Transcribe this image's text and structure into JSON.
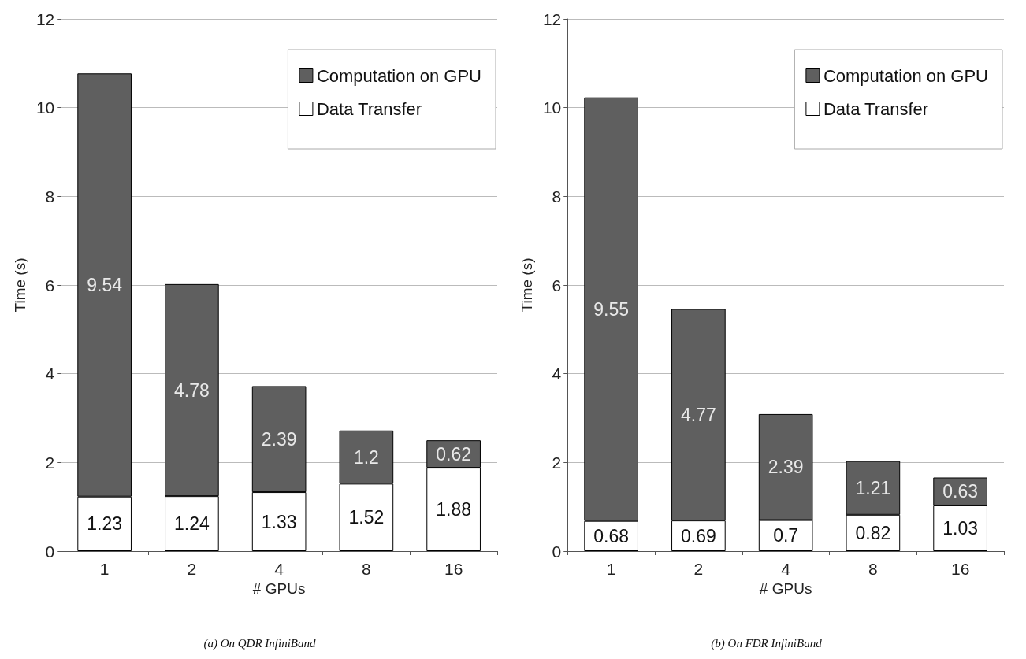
{
  "chart_data": [
    {
      "type": "bar",
      "stacked": true,
      "xlabel": "# GPUs",
      "ylabel": "Time (s)",
      "categories": [
        "1",
        "2",
        "4",
        "8",
        "16"
      ],
      "series": [
        {
          "name": "Data Transfer",
          "color": "#ffffff",
          "values": [
            1.23,
            1.24,
            1.33,
            1.52,
            1.88
          ]
        },
        {
          "name": "Computation on GPU",
          "color": "#5f5f5f",
          "values": [
            9.54,
            4.78,
            2.39,
            1.2,
            0.62
          ]
        }
      ],
      "ylim": [
        0,
        12
      ],
      "yticks": [
        0,
        2,
        4,
        6,
        8,
        10,
        12
      ],
      "grid": "y",
      "legend": "top right",
      "data_labels": true,
      "annotations": [
        "(a) On QDR InfiniBand"
      ]
    },
    {
      "type": "bar",
      "stacked": true,
      "xlabel": "# GPUs",
      "ylabel": "Time (s)",
      "categories": [
        "1",
        "2",
        "4",
        "8",
        "16"
      ],
      "series": [
        {
          "name": "Data Transfer",
          "color": "#ffffff",
          "values": [
            0.68,
            0.69,
            0.7,
            0.82,
            1.03
          ]
        },
        {
          "name": "Computation on GPU",
          "color": "#5f5f5f",
          "values": [
            9.55,
            4.77,
            2.39,
            1.21,
            0.63
          ]
        }
      ],
      "ylim": [
        0,
        12
      ],
      "yticks": [
        0,
        2,
        4,
        6,
        8,
        10,
        12
      ],
      "grid": "y",
      "legend": "top right",
      "data_labels": true,
      "annotations": [
        "(b) On FDR InfiniBand"
      ]
    }
  ]
}
